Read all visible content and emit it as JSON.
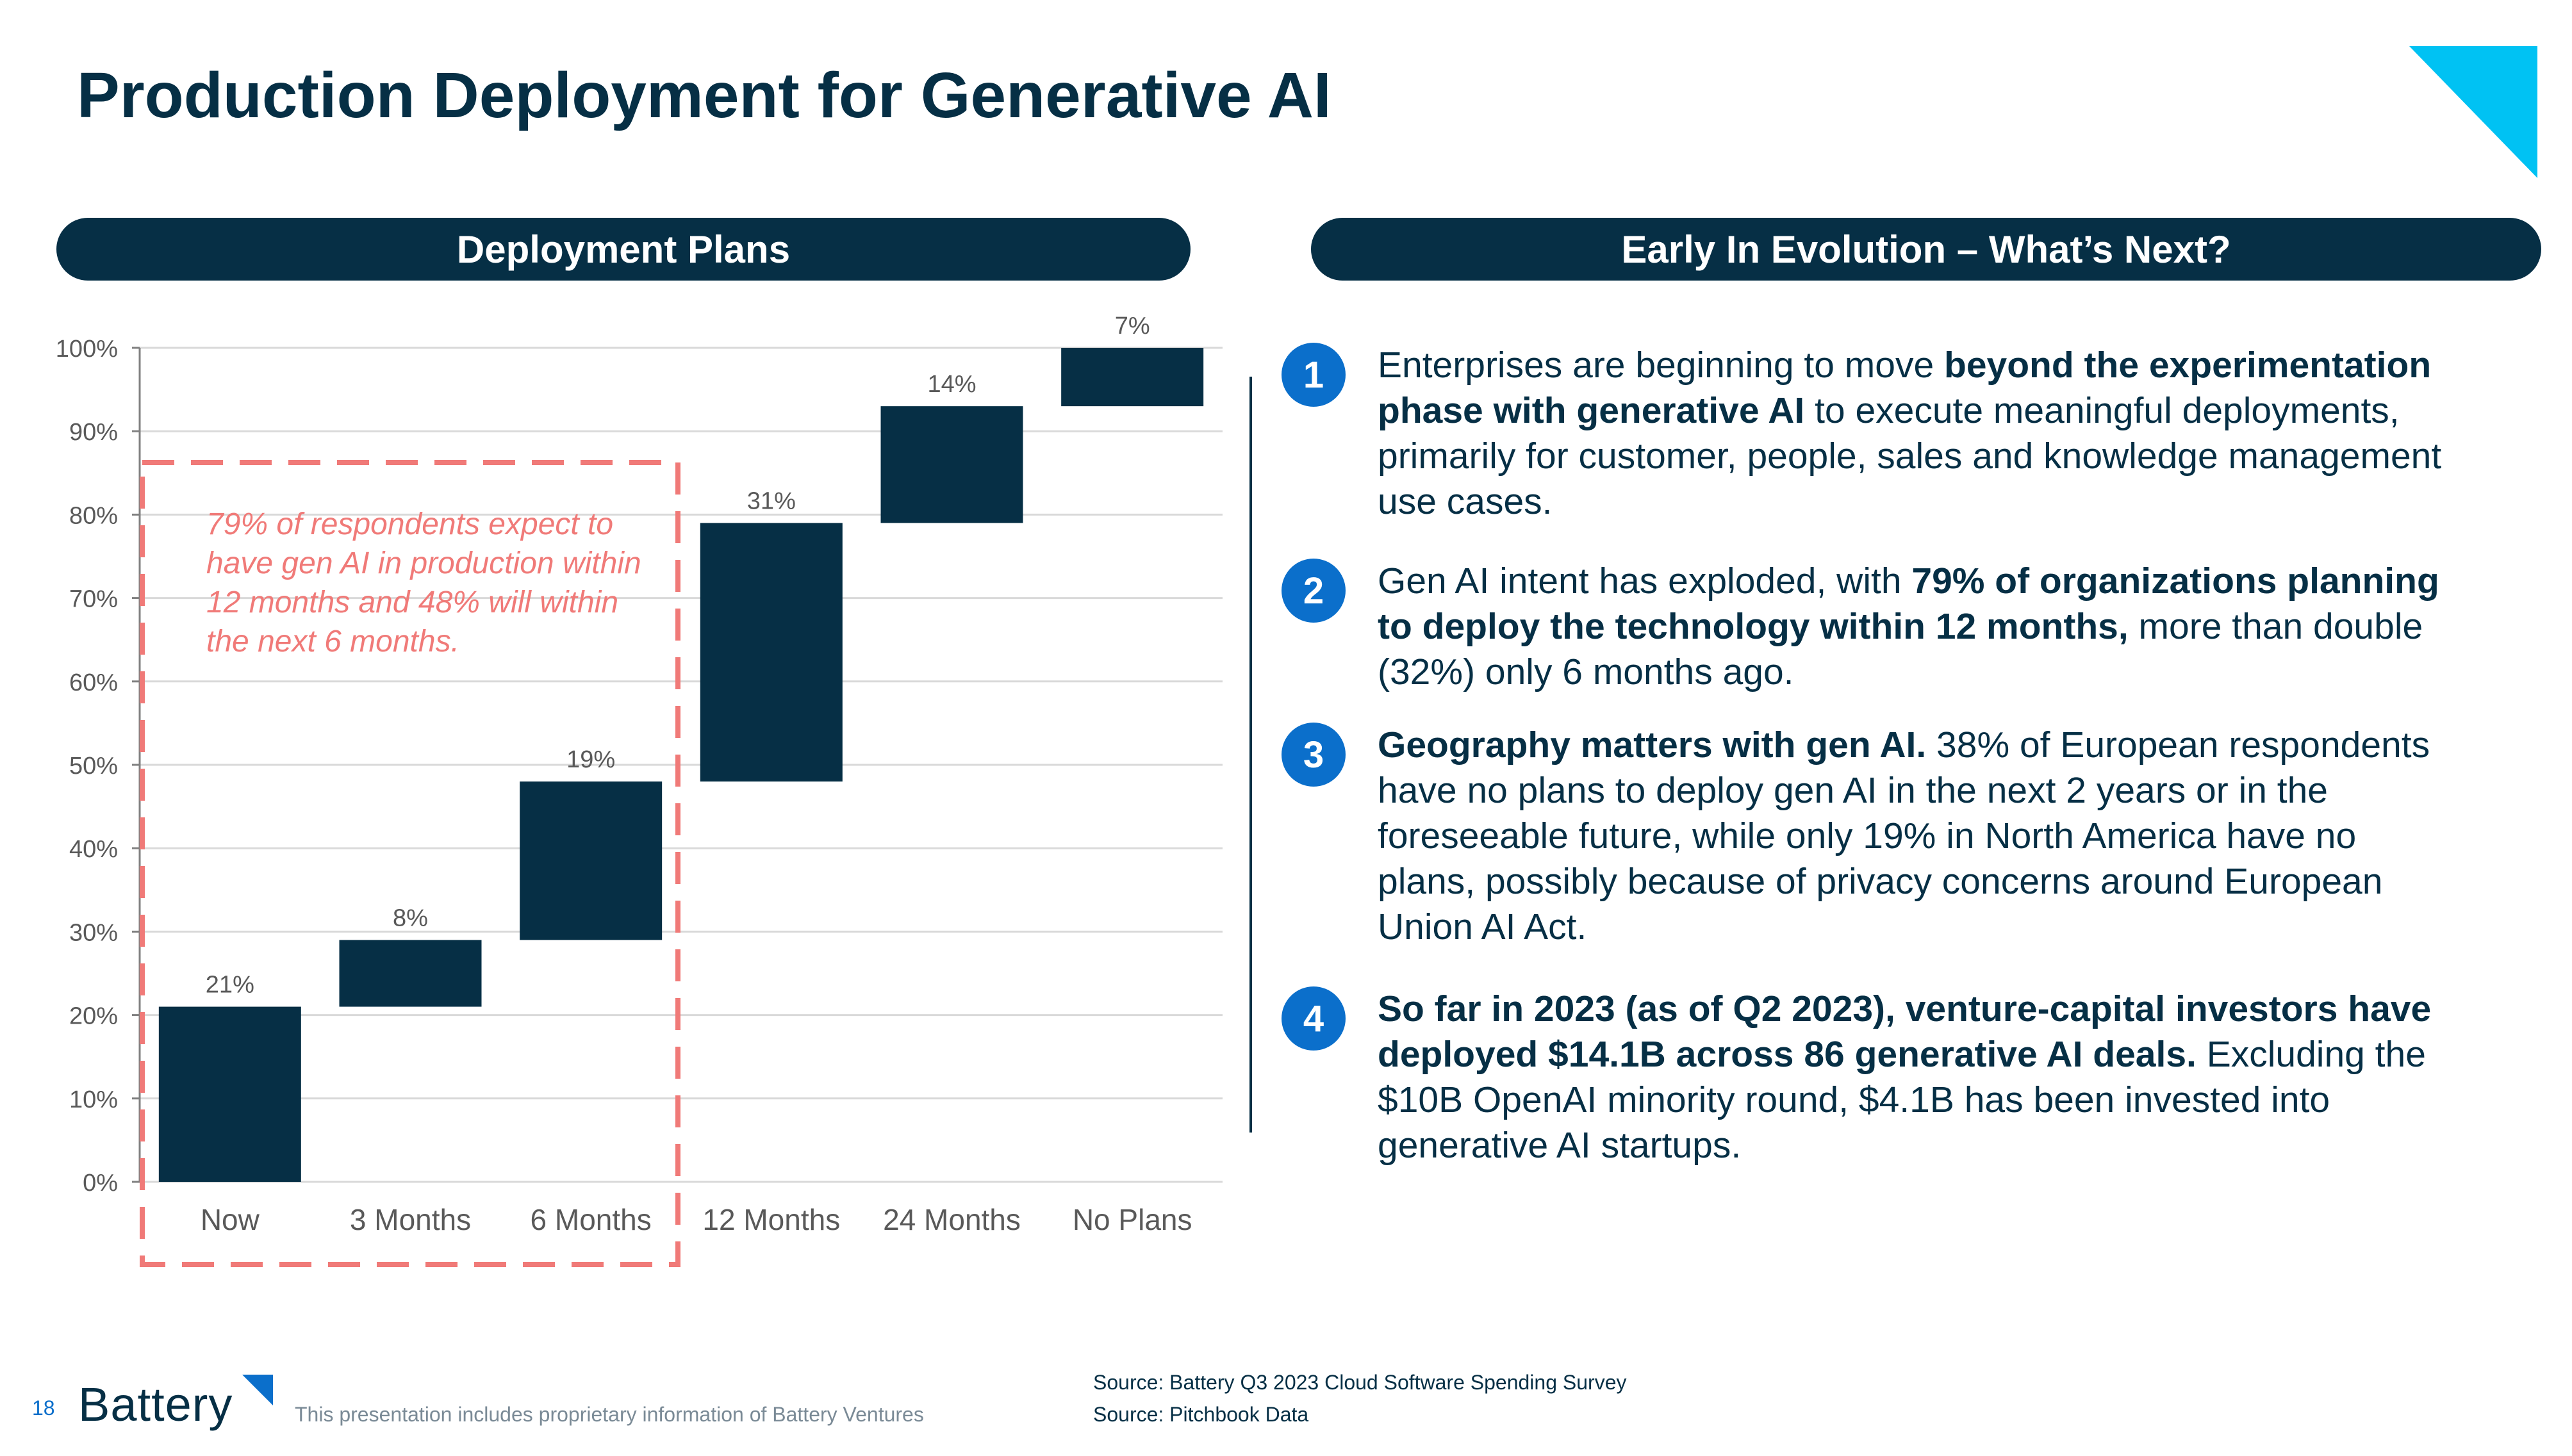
{
  "title": "Production Deployment for Generative AI",
  "left_header": "Deployment Plans",
  "right_header": "Early In Evolution – What’s Next?",
  "callout": "79% of respondents expect to have gen AI in production within 12 months and 48% will within the next 6 months.",
  "points": [
    {
      "number": "1",
      "segments": [
        {
          "text": "Enterprises are beginning to move ",
          "bold": false
        },
        {
          "text": "beyond the experimentation phase with generative AI",
          "bold": true
        },
        {
          "text": " to execute meaningful deployments, primarily for customer, people, sales and knowledge management use cases.",
          "bold": false
        }
      ]
    },
    {
      "number": "2",
      "segments": [
        {
          "text": "Gen AI intent has exploded, with ",
          "bold": false
        },
        {
          "text": "79% of organizations planning to deploy the technology within 12 months,",
          "bold": true
        },
        {
          "text": " more than double (32%) only 6 months ago.",
          "bold": false
        }
      ]
    },
    {
      "number": "3",
      "segments": [
        {
          "text": "Geography matters with gen AI.",
          "bold": true
        },
        {
          "text": " 38% of European respondents have no plans to deploy gen AI in the next 2 years or in the foreseeable future, while only 19% in North America have no plans, possibly because of privacy concerns around European Union AI Act.",
          "bold": false
        }
      ]
    },
    {
      "number": "4",
      "segments": [
        {
          "text": "So far in 2023 (as of Q2 2023), venture-capital investors have deployed $14.1B across 86 generative AI deals.",
          "bold": true
        },
        {
          "text": " Excluding the $10B OpenAI minority round, $4.1B has been invested into generative AI startups.",
          "bold": false
        }
      ]
    }
  ],
  "footer": {
    "page_number": "18",
    "logo_text": "Battery",
    "note": "This presentation includes proprietary information of Battery Ventures",
    "sources": [
      "Source: Battery Q3 2023 Cloud Software Spending Survey",
      "Source: Pitchbook Data"
    ]
  },
  "colors": {
    "navy": "#062F45",
    "blue": "#0B6FCB",
    "cyan": "#00C2F3",
    "coral": "#F07A78",
    "grid": "#D9D9D9",
    "label": "#595959"
  },
  "chart_data": {
    "type": "bar",
    "subtype": "waterfall",
    "categories": [
      "Now",
      "3 Months",
      "6 Months",
      "12 Months",
      "24 Months",
      "No Plans"
    ],
    "values": [
      21,
      8,
      19,
      31,
      14,
      7
    ],
    "bases": [
      0,
      21,
      29,
      48,
      79,
      93
    ],
    "data_labels": [
      "21%",
      "8%",
      "19%",
      "31%",
      "14%",
      "7%"
    ],
    "yticks": [
      "0%",
      "10%",
      "20%",
      "30%",
      "40%",
      "50%",
      "60%",
      "70%",
      "80%",
      "90%",
      "100%"
    ],
    "ylim": [
      0,
      100
    ],
    "grid": true,
    "highlight_categories": [
      "Now",
      "3 Months",
      "6 Months"
    ]
  }
}
